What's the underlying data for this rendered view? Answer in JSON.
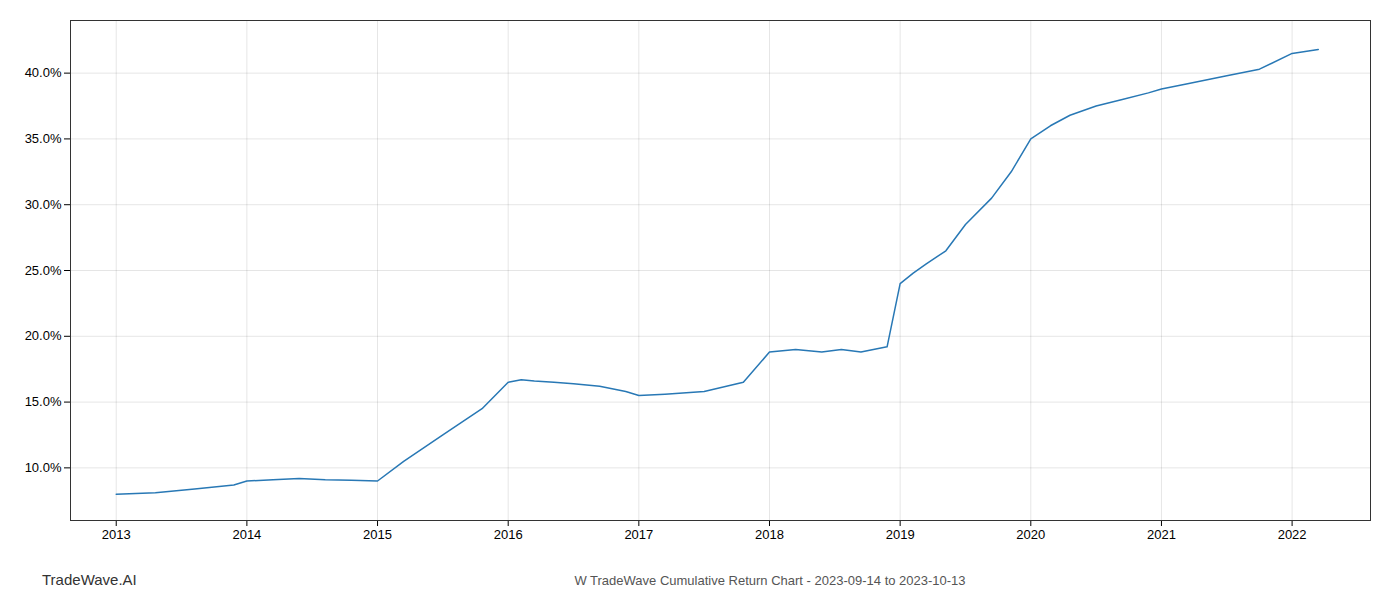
{
  "chart_data": {
    "type": "line",
    "title": "W TradeWave Cumulative Return Chart - 2023-09-14 to 2023-10-13",
    "annotations": [
      "TradeWave.AI"
    ],
    "x": [
      2013.0,
      2013.3,
      2013.6,
      2013.9,
      2014.0,
      2014.2,
      2014.4,
      2014.6,
      2014.8,
      2015.0,
      2015.2,
      2015.5,
      2015.8,
      2016.0,
      2016.1,
      2016.2,
      2016.35,
      2016.5,
      2016.7,
      2016.9,
      2017.0,
      2017.2,
      2017.5,
      2017.8,
      2018.0,
      2018.2,
      2018.4,
      2018.55,
      2018.7,
      2018.9,
      2019.0,
      2019.1,
      2019.2,
      2019.35,
      2019.5,
      2019.7,
      2019.85,
      2020.0,
      2020.15,
      2020.3,
      2020.5,
      2020.7,
      2020.9,
      2021.0,
      2021.2,
      2021.5,
      2021.75,
      2022.0,
      2022.2
    ],
    "values": [
      8.0,
      8.1,
      8.4,
      8.7,
      9.0,
      9.1,
      9.2,
      9.1,
      9.05,
      9.0,
      10.5,
      12.5,
      14.5,
      16.5,
      16.7,
      16.6,
      16.5,
      16.4,
      16.2,
      15.8,
      15.5,
      15.6,
      15.8,
      16.5,
      18.8,
      19.0,
      18.8,
      19.0,
      18.8,
      19.2,
      24.0,
      24.8,
      25.5,
      26.5,
      28.5,
      30.5,
      32.5,
      35.0,
      36.0,
      36.8,
      37.5,
      38.0,
      38.5,
      38.8,
      39.2,
      39.8,
      40.3,
      41.5,
      41.8
    ],
    "color": "#2878b5",
    "xlim": [
      2012.65,
      2022.6
    ],
    "ylim": [
      6.0,
      44.0
    ],
    "xticks": [
      2013,
      2014,
      2015,
      2016,
      2017,
      2018,
      2019,
      2020,
      2021,
      2022
    ],
    "yticks": [
      {
        "value": 10.0,
        "label": "10.0%"
      },
      {
        "value": 15.0,
        "label": "15.0%"
      },
      {
        "value": 20.0,
        "label": "20.0%"
      },
      {
        "value": 25.0,
        "label": "25.0%"
      },
      {
        "value": 30.0,
        "label": "30.0%"
      },
      {
        "value": 35.0,
        "label": "35.0%"
      },
      {
        "value": 40.0,
        "label": "40.0%"
      }
    ],
    "grid": true
  }
}
